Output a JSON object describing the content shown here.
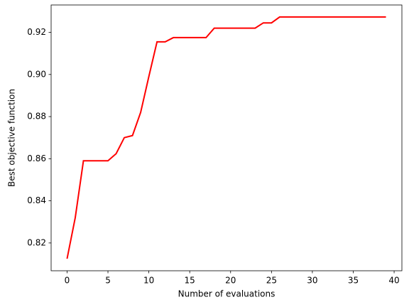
{
  "chart_data": {
    "type": "line",
    "xlabel": "Number of evaluations",
    "ylabel": "Best objective function",
    "x": [
      0,
      1,
      2,
      3,
      4,
      5,
      6,
      7,
      8,
      9,
      10,
      11,
      12,
      13,
      14,
      15,
      16,
      17,
      18,
      19,
      20,
      21,
      22,
      23,
      24,
      25,
      26,
      27,
      28,
      29,
      30,
      31,
      32,
      33,
      34,
      35,
      36,
      37,
      38,
      39
    ],
    "series": [
      {
        "color": "#ff0000",
        "values": [
          0.8125,
          0.832,
          0.859,
          0.859,
          0.859,
          0.859,
          0.8624,
          0.87,
          0.871,
          0.882,
          0.899,
          0.9155,
          0.9155,
          0.9175,
          0.9175,
          0.9175,
          0.9175,
          0.9175,
          0.922,
          0.922,
          0.922,
          0.922,
          0.922,
          0.922,
          0.9245,
          0.9245,
          0.9273,
          0.9273,
          0.9273,
          0.9273,
          0.9273,
          0.9273,
          0.9273,
          0.9273,
          0.9273,
          0.9273,
          0.9273,
          0.9273,
          0.9273,
          0.9273
        ]
      }
    ],
    "xlim": [
      -1.95,
      40.95
    ],
    "xticks": [
      0,
      5,
      10,
      15,
      20,
      25,
      30,
      35,
      40
    ],
    "ylim": [
      0.8068,
      0.933
    ],
    "yticks": [
      0.82,
      0.84,
      0.86,
      0.88,
      {
        "value": 0.9,
        "label": "0.90"
      },
      0.92
    ]
  }
}
